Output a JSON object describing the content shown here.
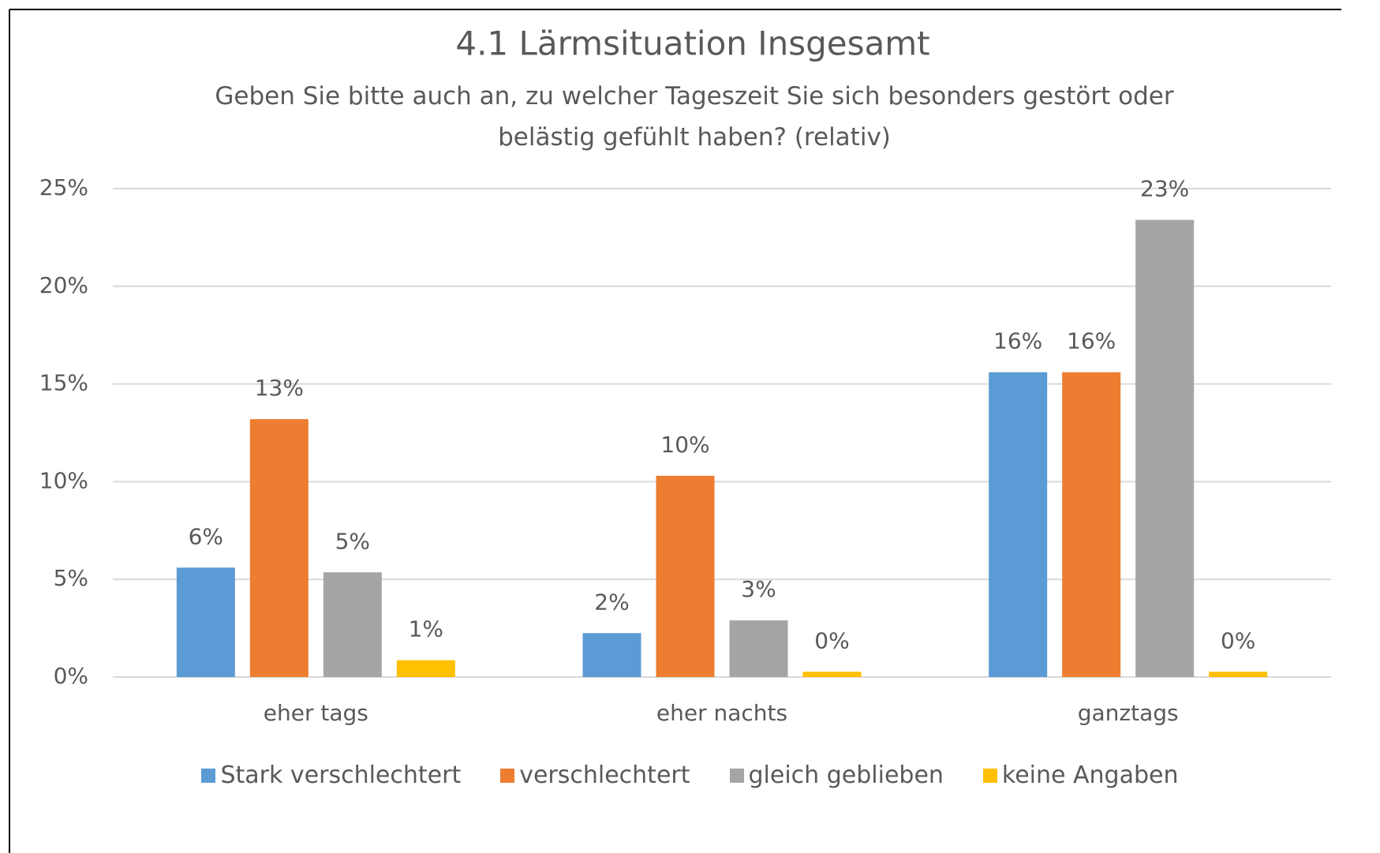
{
  "chart_data": {
    "type": "bar",
    "title": "4.1 Lärmsituation Insgesamt",
    "subtitle": "Geben Sie bitte auch an, zu welcher Tageszeit Sie sich besonders gestört oder belästig gefühlt haben? (relativ)",
    "categories": [
      "eher tags",
      "eher nachts",
      "ganztags"
    ],
    "series": [
      {
        "name": "Stark verschlechtert",
        "color": "#5b9bd5",
        "values": [
          5.6,
          2.25,
          15.6
        ],
        "value_labels": [
          "6%",
          "2%",
          "16%"
        ]
      },
      {
        "name": "verschlechtert",
        "color": "#ed7d31",
        "values": [
          13.2,
          10.3,
          15.6
        ],
        "value_labels": [
          "13%",
          "10%",
          "16%"
        ]
      },
      {
        "name": "gleich geblieben",
        "color": "#a5a5a5",
        "values": [
          5.36,
          2.9,
          23.4
        ],
        "value_labels": [
          "5%",
          "3%",
          "23%"
        ]
      },
      {
        "name": "keine Angaben",
        "color": "#ffc000",
        "values": [
          0.86,
          0.27,
          0.27
        ],
        "value_labels": [
          "1%",
          "0%",
          "0%"
        ]
      }
    ],
    "ylim": [
      0,
      25
    ],
    "yticks": [
      {
        "value": 0,
        "label": "0%"
      },
      {
        "value": 5,
        "label": "5%"
      },
      {
        "value": 10,
        "label": "10%"
      },
      {
        "value": 15,
        "label": "15%"
      },
      {
        "value": 20,
        "label": "20%"
      },
      {
        "value": 25,
        "label": "25%"
      }
    ],
    "grid": true,
    "legend": "bottom"
  }
}
